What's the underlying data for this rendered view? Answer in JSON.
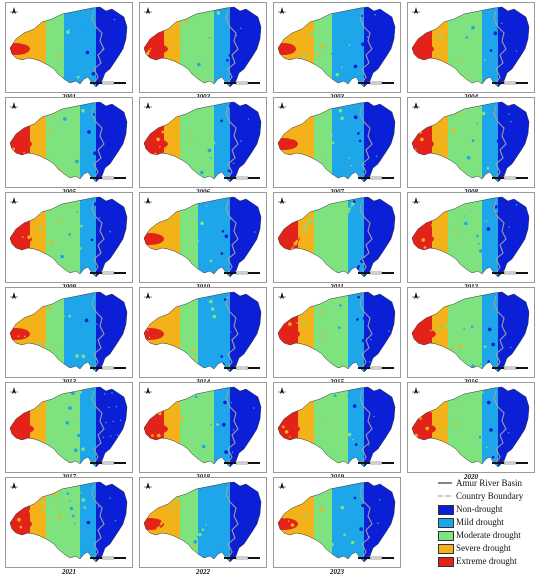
{
  "figure": {
    "panels": [
      {
        "year": "2001",
        "variant": 1
      },
      {
        "year": "2002",
        "variant": 3
      },
      {
        "year": "2003",
        "variant": 0
      },
      {
        "year": "2004",
        "variant": 2
      },
      {
        "year": "2005",
        "variant": 2
      },
      {
        "year": "2006",
        "variant": 3
      },
      {
        "year": "2007",
        "variant": 1
      },
      {
        "year": "2008",
        "variant": 2
      },
      {
        "year": "2009",
        "variant": 2
      },
      {
        "year": "2010",
        "variant": 1
      },
      {
        "year": "2011",
        "variant": 2
      },
      {
        "year": "2012",
        "variant": 2
      },
      {
        "year": "2013",
        "variant": 1
      },
      {
        "year": "2014",
        "variant": 1
      },
      {
        "year": "2015",
        "variant": 2
      },
      {
        "year": "2016",
        "variant": 3
      },
      {
        "year": "2017",
        "variant": 3
      },
      {
        "year": "2018",
        "variant": 3
      },
      {
        "year": "2019",
        "variant": 2
      },
      {
        "year": "2020",
        "variant": 3
      },
      {
        "year": "2021",
        "variant": 2
      },
      {
        "year": "2022",
        "variant": 1
      },
      {
        "year": "2023",
        "variant": 1
      }
    ],
    "legend": {
      "lines": [
        {
          "label": "Amur River Basin",
          "symbol": "solid-line"
        },
        {
          "label": "Country Boundary",
          "symbol": "dash-dot-line"
        }
      ],
      "classes": [
        {
          "label": "Non-drought",
          "color": "#0a1fd6"
        },
        {
          "label": "Mild drought",
          "color": "#1ea6ea"
        },
        {
          "label": "Moderate drought",
          "color": "#7ee37e"
        },
        {
          "label": "Severe drought",
          "color": "#f4b21a"
        },
        {
          "label": "Extreme drought",
          "color": "#e3231a"
        }
      ]
    },
    "colors": {
      "boundary": "#9aa0a6",
      "panel_border": "#9a9a9a"
    }
  }
}
